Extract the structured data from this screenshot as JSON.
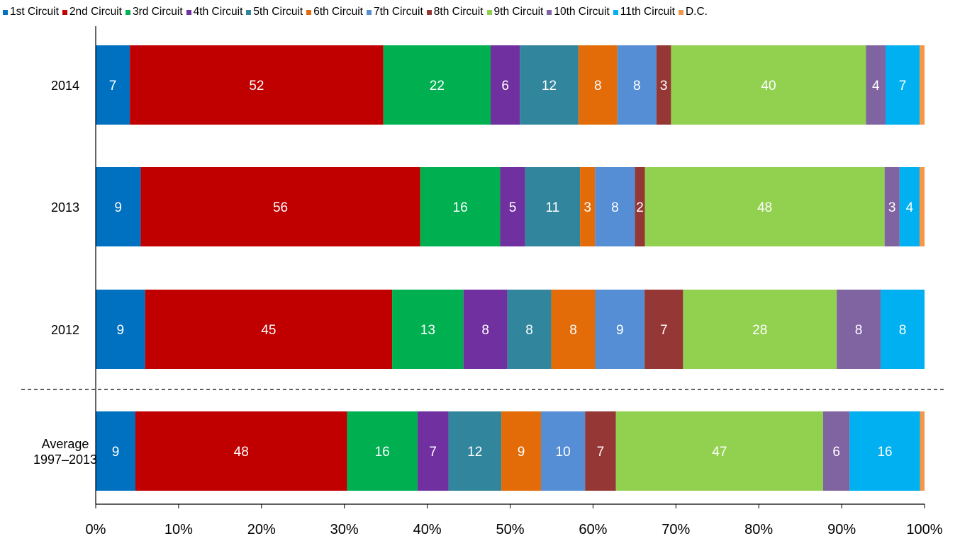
{
  "chart_data": {
    "type": "bar",
    "orientation": "horizontal",
    "stacked": "percent",
    "categories": [
      "2014",
      "2013",
      "2012",
      "Average 1997–2013"
    ],
    "series": [
      {
        "name": "1st Circuit",
        "color": "#0070c0",
        "values": [
          7,
          9,
          9,
          9
        ]
      },
      {
        "name": "2nd Circuit",
        "color": "#c00000",
        "values": [
          52,
          56,
          45,
          48
        ]
      },
      {
        "name": "3rd Circuit",
        "color": "#00b050",
        "values": [
          22,
          16,
          13,
          16
        ]
      },
      {
        "name": "4th Circuit",
        "color": "#7030a0",
        "values": [
          6,
          5,
          8,
          7
        ]
      },
      {
        "name": "5th Circuit",
        "color": "#31859c",
        "values": [
          12,
          11,
          8,
          12
        ]
      },
      {
        "name": "6th Circuit",
        "color": "#e36c09",
        "values": [
          8,
          3,
          8,
          9
        ]
      },
      {
        "name": "7th Circuit",
        "color": "#558ed5",
        "values": [
          8,
          8,
          9,
          10
        ]
      },
      {
        "name": "8th Circuit",
        "color": "#953735",
        "values": [
          3,
          2,
          7,
          7
        ]
      },
      {
        "name": "9th Circuit",
        "color": "#92d050",
        "values": [
          40,
          48,
          28,
          47
        ]
      },
      {
        "name": "10th Circuit",
        "color": "#8064a2",
        "values": [
          4,
          3,
          8,
          6
        ]
      },
      {
        "name": "11th Circuit",
        "color": "#00b0f0",
        "values": [
          7,
          4,
          8,
          16
        ]
      },
      {
        "name": "D.C.",
        "color": "#f79646",
        "values": [
          1,
          1,
          0,
          1
        ]
      }
    ],
    "xlim": [
      0,
      100
    ],
    "x_ticks": [
      "0%",
      "10%",
      "20%",
      "30%",
      "40%",
      "50%",
      "60%",
      "70%",
      "80%",
      "90%",
      "100%"
    ],
    "category_labels": [
      [
        "2014"
      ],
      [
        "2013"
      ],
      [
        "2012"
      ],
      [
        "Average",
        "1997–2013"
      ]
    ],
    "label_color": "#ffffff",
    "grid": false,
    "legend_position": "top",
    "separator_before_category": "Average 1997–2013"
  }
}
